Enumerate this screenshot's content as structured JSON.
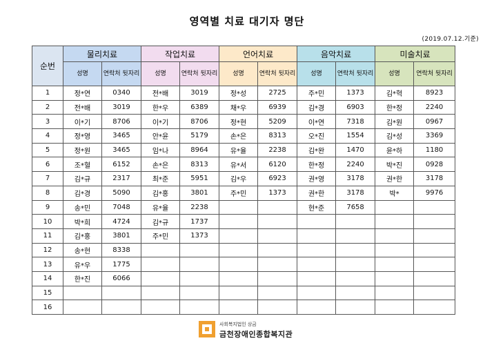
{
  "title": "영역별 치료 대기자 명단",
  "date": "(2019.07.12.기준)",
  "no_header": "순번",
  "categories": [
    "물리치료",
    "작업치료",
    "언어치료",
    "음악치료",
    "미술치료"
  ],
  "sub_headers": {
    "name": "성명",
    "phone": "연락처 뒷자리"
  },
  "rows": [
    {
      "no": "1",
      "cells": [
        [
          "정*연",
          "0340"
        ],
        [
          "전*배",
          "3019"
        ],
        [
          "정*성",
          "2725"
        ],
        [
          "주*민",
          "1373"
        ],
        [
          "김*혁",
          "8923"
        ]
      ]
    },
    {
      "no": "2",
      "cells": [
        [
          "전*배",
          "3019"
        ],
        [
          "한*우",
          "6389"
        ],
        [
          "채*우",
          "6939"
        ],
        [
          "김*경",
          "6903"
        ],
        [
          "한*정",
          "2240"
        ]
      ]
    },
    {
      "no": "3",
      "cells": [
        [
          "이*기",
          "8706"
        ],
        [
          "이*기",
          "8706"
        ],
        [
          "정*현",
          "5209"
        ],
        [
          "이*연",
          "7318"
        ],
        [
          "김*원",
          "0967"
        ]
      ]
    },
    {
      "no": "4",
      "cells": [
        [
          "정*영",
          "3465"
        ],
        [
          "안*윤",
          "5179"
        ],
        [
          "손*은",
          "8313"
        ],
        [
          "오*진",
          "1554"
        ],
        [
          "김*성",
          "3369"
        ]
      ]
    },
    {
      "no": "5",
      "cells": [
        [
          "정*원",
          "3465"
        ],
        [
          "임*나",
          "8964"
        ],
        [
          "유*율",
          "2238"
        ],
        [
          "김*완",
          "1470"
        ],
        [
          "윤*하",
          "1180"
        ]
      ]
    },
    {
      "no": "6",
      "cells": [
        [
          "조*혈",
          "6152"
        ],
        [
          "손*은",
          "8313"
        ],
        [
          "유*서",
          "6120"
        ],
        [
          "한*정",
          "2240"
        ],
        [
          "박*진",
          "0928"
        ]
      ]
    },
    {
      "no": "7",
      "cells": [
        [
          "김*규",
          "2317"
        ],
        [
          "최*준",
          "5951"
        ],
        [
          "김*우",
          "6923"
        ],
        [
          "권*영",
          "3178"
        ],
        [
          "권*한",
          "3178"
        ]
      ]
    },
    {
      "no": "8",
      "cells": [
        [
          "김*경",
          "5090"
        ],
        [
          "김*홍",
          "3801"
        ],
        [
          "주*민",
          "1373"
        ],
        [
          "권*한",
          "3178"
        ],
        [
          "박*",
          "9976"
        ]
      ]
    },
    {
      "no": "9",
      "cells": [
        [
          "송*민",
          "7048"
        ],
        [
          "유*율",
          "2238"
        ],
        [
          "",
          ""
        ],
        [
          "현*준",
          "7658"
        ],
        [
          "",
          ""
        ]
      ]
    },
    {
      "no": "10",
      "cells": [
        [
          "박*희",
          "4724"
        ],
        [
          "김*규",
          "1737"
        ],
        [
          "",
          ""
        ],
        [
          "",
          ""
        ],
        [
          "",
          ""
        ]
      ]
    },
    {
      "no": "11",
      "cells": [
        [
          "김*홍",
          "3801"
        ],
        [
          "주*민",
          "1373"
        ],
        [
          "",
          ""
        ],
        [
          "",
          ""
        ],
        [
          "",
          ""
        ]
      ]
    },
    {
      "no": "12",
      "cells": [
        [
          "송*현",
          "8338"
        ],
        [
          "",
          ""
        ],
        [
          "",
          ""
        ],
        [
          "",
          ""
        ],
        [
          "",
          ""
        ]
      ]
    },
    {
      "no": "13",
      "cells": [
        [
          "유*우",
          "1775"
        ],
        [
          "",
          ""
        ],
        [
          "",
          ""
        ],
        [
          "",
          ""
        ],
        [
          "",
          ""
        ]
      ]
    },
    {
      "no": "14",
      "cells": [
        [
          "한*진",
          "6066"
        ],
        [
          "",
          ""
        ],
        [
          "",
          ""
        ],
        [
          "",
          ""
        ],
        [
          "",
          ""
        ]
      ]
    },
    {
      "no": "15",
      "cells": [
        [
          "",
          ""
        ],
        [
          "",
          ""
        ],
        [
          "",
          ""
        ],
        [
          "",
          ""
        ],
        [
          "",
          ""
        ]
      ]
    },
    {
      "no": "16",
      "cells": [
        [
          "",
          ""
        ],
        [
          "",
          ""
        ],
        [
          "",
          ""
        ],
        [
          "",
          ""
        ],
        [
          "",
          ""
        ]
      ]
    }
  ],
  "logo": {
    "subtitle": "사회복지법인 상금",
    "name": "금천장애인종합복지관"
  },
  "colors": {
    "phys": "#c5d9f1",
    "occ": "#f2dcef",
    "lang": "#fde9c9",
    "music": "#b8e0ea",
    "art": "#d7e4bd"
  }
}
